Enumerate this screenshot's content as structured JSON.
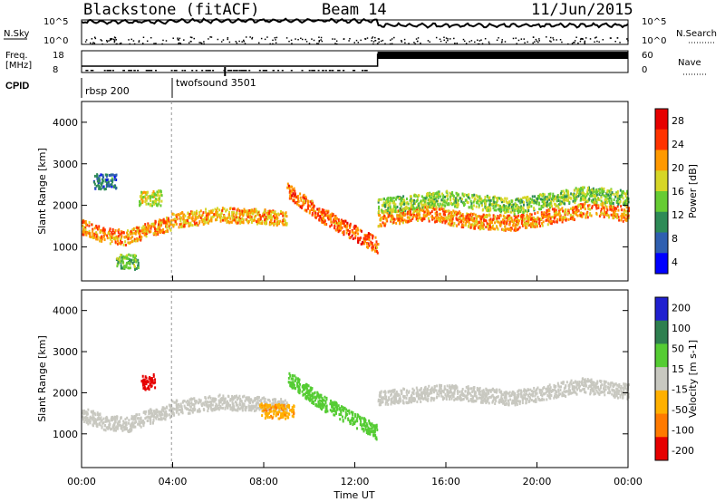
{
  "header": {
    "radar": "Blackstone (fitACF)",
    "beam": "Beam 14",
    "date": "11/Jun/2015"
  },
  "status": {
    "nsky_label": "N.Sky",
    "nsky_ticks": [
      "10^5",
      "10^0"
    ],
    "nsearch_label": "N.Search",
    "nsearch_ticks": [
      "10^5",
      "10^0"
    ],
    "freq_label": [
      "Freq.",
      "[MHz]"
    ],
    "freq_ticks": [
      "18",
      "8"
    ],
    "nave_label": "Nave",
    "nave_ticks": [
      "60",
      "0"
    ],
    "cpid_label": "CPID",
    "cpid_entries": [
      {
        "name": "rbsp 200",
        "start": 0
      },
      {
        "name": "twofsound 3501",
        "start": 3.95
      }
    ]
  },
  "chart_data": [
    {
      "type": "heatmap",
      "panel": "power",
      "xlabel": "",
      "ylabel": "Slant Range [km]",
      "xlim": [
        0,
        24
      ],
      "ylim": [
        180,
        4500
      ],
      "yticks": [
        "4000",
        "3000",
        "2000",
        "1000"
      ],
      "ytick_values": [
        4000,
        3000,
        2000,
        1000
      ],
      "colorbar": {
        "label": "Power [dB]",
        "ticks": [
          "28",
          "24",
          "20",
          "16",
          "12",
          "8",
          "4"
        ],
        "tick_values": [
          28,
          24,
          20,
          16,
          12,
          8,
          4
        ],
        "range": [
          0,
          30
        ],
        "colors": [
          "#0000ff",
          "#2f5fb0",
          "#2e8b57",
          "#66cc33",
          "#d6d627",
          "#ff9900",
          "#ff3300",
          "#e60000"
        ]
      },
      "scatter_bands": [
        {
          "x": [
            0.0,
            1.0,
            2.0,
            3.0,
            3.9
          ],
          "y": [
            1500,
            1300,
            1250,
            1450,
            1600
          ],
          "level": 22
        },
        {
          "x": [
            3.9,
            6.0,
            8.0,
            9.0
          ],
          "y": [
            1650,
            1800,
            1750,
            1700
          ],
          "level": 20
        },
        {
          "x": [
            9.0,
            10.5,
            12.0,
            13.0
          ],
          "y": [
            2400,
            1800,
            1350,
            1050
          ],
          "level": 24
        },
        {
          "x": [
            13.0,
            15.0,
            17.0,
            19.0,
            21.0,
            22.5,
            24.0
          ],
          "y": [
            1700,
            1850,
            1650,
            1600,
            1800,
            1950,
            1800
          ],
          "level": 22
        },
        {
          "x": [
            13.0,
            16.0,
            19.0,
            22.0,
            24.0
          ],
          "y": [
            2000,
            2200,
            2000,
            2300,
            2200
          ],
          "level": 14
        },
        {
          "x": [
            2.5,
            3.5
          ],
          "y": [
            2200,
            2200
          ],
          "level": 16
        },
        {
          "x": [
            0.5,
            1.5
          ],
          "y": [
            2600,
            2600
          ],
          "level": 6
        },
        {
          "x": [
            1.5,
            2.5
          ],
          "y": [
            700,
            650
          ],
          "level": 12
        }
      ]
    },
    {
      "type": "heatmap",
      "panel": "velocity",
      "xlabel": "Time UT",
      "ylabel": "Slant Range [km]",
      "xlim": [
        0,
        24
      ],
      "ylim": [
        180,
        4500
      ],
      "xticks": [
        "00:00",
        "04:00",
        "08:00",
        "12:00",
        "16:00",
        "20:00",
        "00:00"
      ],
      "xtick_values": [
        0,
        4,
        8,
        12,
        16,
        20,
        24
      ],
      "yticks": [
        "4000",
        "3000",
        "2000",
        "1000"
      ],
      "ytick_values": [
        4000,
        3000,
        2000,
        1000
      ],
      "colorbar": {
        "label": "Velocity [m s-1]",
        "ticks": [
          "200",
          "100",
          "50",
          "15",
          "-15",
          "-50",
          "-100",
          "-200"
        ],
        "tick_values": [
          200,
          100,
          50,
          15,
          -15,
          -50,
          -100,
          -200
        ],
        "colors": [
          "#2020d0",
          "#2e7f4f",
          "#55cc33",
          "#c8c8c0",
          "#ffb000",
          "#ff7a00",
          "#e60000"
        ]
      },
      "regions": [
        {
          "x": [
            0.0,
            1.0,
            2.0,
            3.0,
            3.9
          ],
          "y": [
            1500,
            1300,
            1250,
            1450,
            1600
          ],
          "velocity": 0
        },
        {
          "x": [
            3.9,
            6.0,
            8.0,
            9.0
          ],
          "y": [
            1650,
            1800,
            1750,
            1700
          ],
          "velocity": 0
        },
        {
          "x": [
            9.0,
            10.5,
            12.0,
            13.0
          ],
          "y": [
            2400,
            1800,
            1350,
            1050
          ],
          "velocity": 60
        },
        {
          "x": [
            13.0,
            16.0,
            19.0,
            22.0,
            24.0
          ],
          "y": [
            1900,
            2050,
            1900,
            2200,
            2050
          ],
          "velocity": 0
        },
        {
          "x": [
            2.6,
            3.2
          ],
          "y": [
            2250,
            2300
          ],
          "velocity": -220
        },
        {
          "x": [
            7.8,
            9.3
          ],
          "y": [
            1600,
            1550
          ],
          "velocity": -70
        }
      ]
    }
  ]
}
